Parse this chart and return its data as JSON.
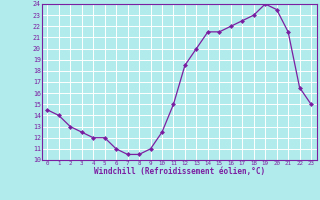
{
  "x": [
    0,
    1,
    2,
    3,
    4,
    5,
    6,
    7,
    8,
    9,
    10,
    11,
    12,
    13,
    14,
    15,
    16,
    17,
    18,
    19,
    20,
    21,
    22,
    23
  ],
  "y": [
    14.5,
    14.0,
    13.0,
    12.5,
    12.0,
    12.0,
    11.0,
    10.5,
    10.5,
    11.0,
    12.5,
    15.0,
    18.5,
    20.0,
    21.5,
    21.5,
    22.0,
    22.5,
    23.0,
    24.0,
    23.5,
    21.5,
    16.5,
    15.0
  ],
  "xlabel": "Windchill (Refroidissement éolien,°C)",
  "ylim": [
    10,
    24
  ],
  "xlim": [
    -0.5,
    23.5
  ],
  "yticks": [
    10,
    11,
    12,
    13,
    14,
    15,
    16,
    17,
    18,
    19,
    20,
    21,
    22,
    23,
    24
  ],
  "xticks": [
    0,
    1,
    2,
    3,
    4,
    5,
    6,
    7,
    8,
    9,
    10,
    11,
    12,
    13,
    14,
    15,
    16,
    17,
    18,
    19,
    20,
    21,
    22,
    23
  ],
  "line_color": "#7b1fa2",
  "marker": "D",
  "bg_color": "#b2ebeb",
  "grid_color": "#ffffff",
  "label_color": "#7b1fa2",
  "tick_color": "#7b1fa2",
  "spine_color": "#7b1fa2"
}
